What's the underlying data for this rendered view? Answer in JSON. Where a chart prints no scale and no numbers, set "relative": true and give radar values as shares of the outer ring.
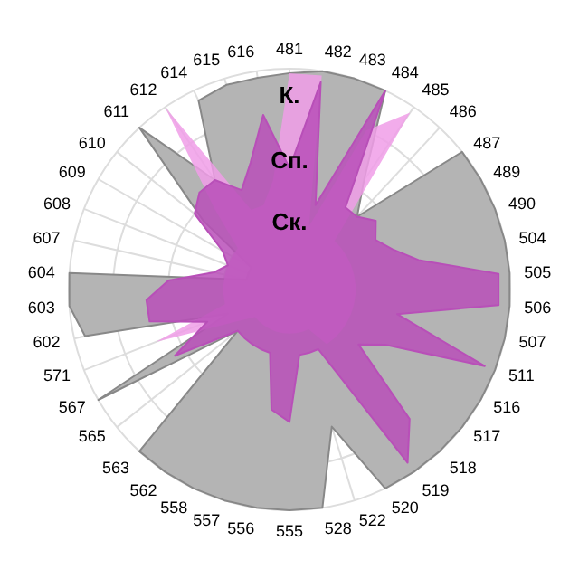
{
  "chart_data": {
    "type": "radar",
    "relative": true,
    "grid": true,
    "categories": [
      "481",
      "482",
      "483",
      "484",
      "485",
      "486",
      "487",
      "489",
      "490",
      "504",
      "505",
      "506",
      "507",
      "511",
      "516",
      "517",
      "518",
      "519",
      "520",
      "522",
      "528",
      "555",
      "556",
      "557",
      "558",
      "562",
      "563",
      "565",
      "567",
      "571",
      "602",
      "603",
      "604",
      "607",
      "608",
      "609",
      "610",
      "611",
      "612",
      "614",
      "615",
      "616"
    ],
    "series": [
      {
        "color": "#b4b4b4",
        "values": [
          0.98,
          1,
          1,
          1,
          0.6,
          0.45,
          1,
          1,
          1,
          1,
          1,
          1,
          1,
          1,
          1,
          1,
          1,
          1,
          1,
          0.65,
          1,
          1,
          1,
          1,
          1,
          1,
          1,
          0.3,
          1,
          0.3,
          0.95,
          1,
          1,
          0.2,
          0.2,
          0.2,
          0.5,
          1,
          0.6,
          0.95,
          0.97,
          0.97
        ]
      },
      {
        "color": "#f09ee8",
        "values": [
          0.98,
          0.98,
          0.3,
          0.8,
          0.97,
          0.3,
          0.3,
          0.3,
          0.3,
          0.3,
          0.3,
          0.3,
          0.3,
          0.3,
          0.3,
          0.3,
          0.3,
          0.3,
          0.2,
          0.2,
          0.2,
          0.2,
          0.2,
          0.2,
          0.2,
          0.2,
          0.2,
          0.2,
          0.3,
          0.65,
          0.3,
          0.3,
          0.3,
          0.3,
          0.3,
          0.3,
          0.3,
          0.5,
          1,
          0.4,
          0.4,
          0.5
        ]
      },
      {
        "color": "#b84fb8",
        "values": [
          0.55,
          0.95,
          0.4,
          1,
          0.45,
          0.45,
          0.5,
          0.45,
          0.5,
          0.6,
          0.95,
          0.95,
          0.5,
          0.95,
          0.5,
          0.4,
          0.8,
          0.95,
          0.3,
          0.3,
          0.3,
          0.6,
          0.55,
          0.3,
          0.3,
          0.3,
          0.3,
          0.3,
          0.6,
          0.4,
          0.65,
          0.65,
          0.55,
          0.35,
          0.3,
          0.35,
          0.55,
          0.6,
          0.6,
          0.5,
          0.6,
          0.8
        ]
      }
    ],
    "annotations": [
      "К.",
      "Сп.",
      "Ск."
    ]
  }
}
